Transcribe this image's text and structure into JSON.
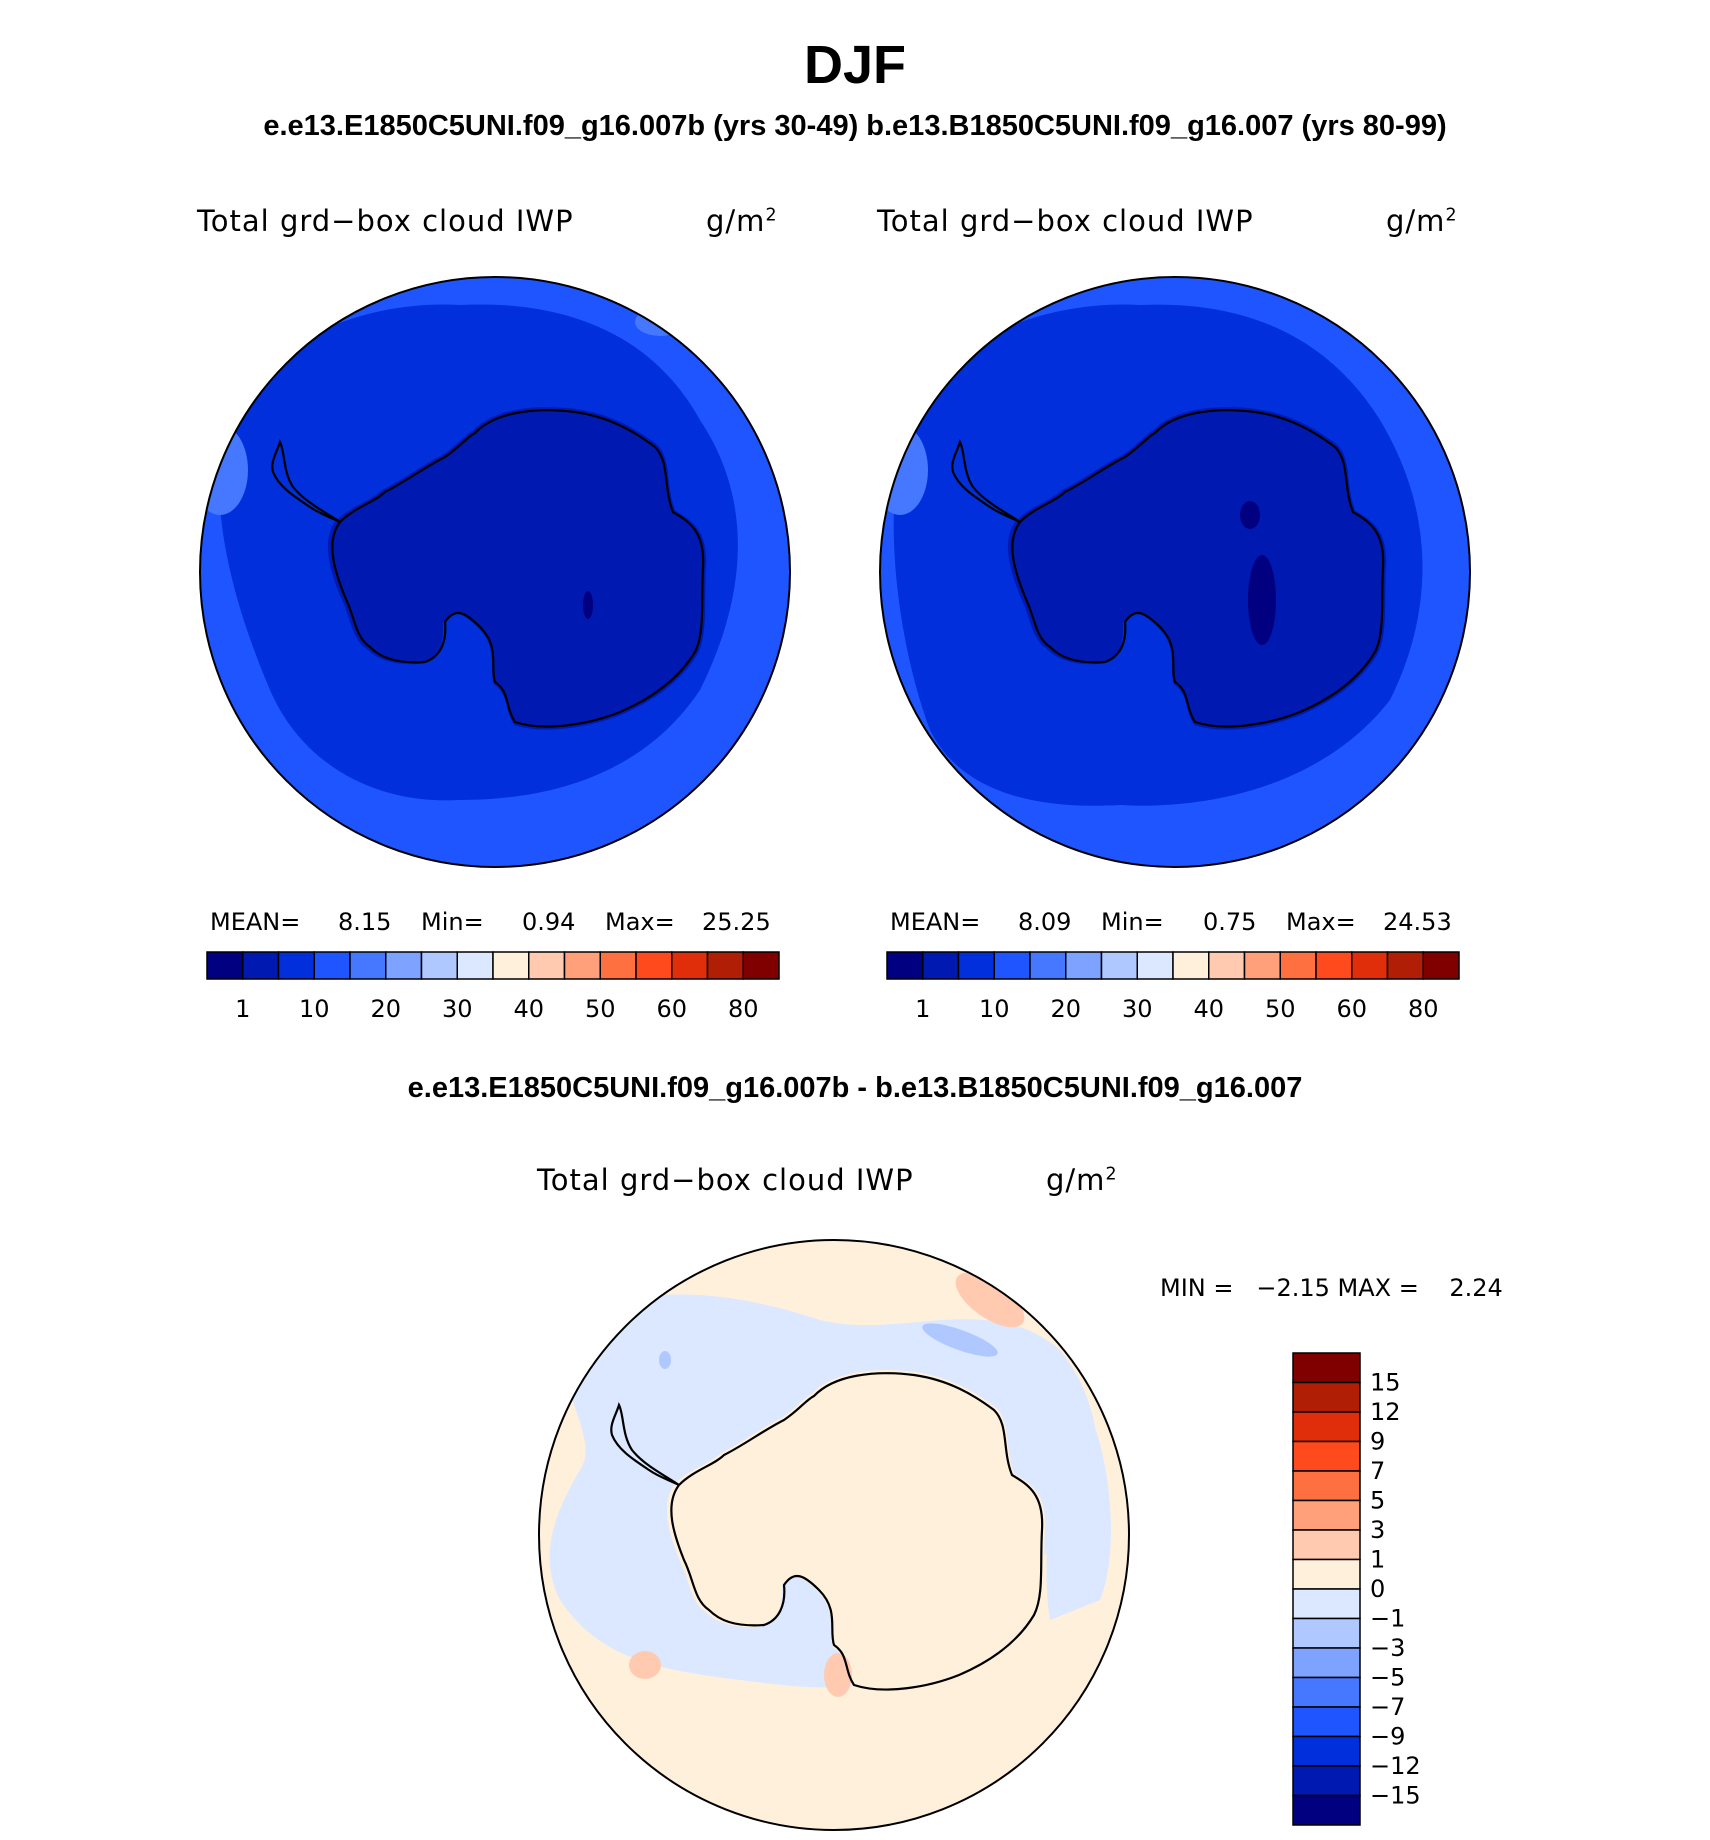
{
  "titles": {
    "main": "DJF",
    "subtitle": "e.e13.E1850C5UNI.f09_g16.007b (yrs 30-49)  b.e13.B1850C5UNI.f09_g16.007 (yrs 80-99)",
    "diff": "e.e13.E1850C5UNI.f09_g16.007b - b.e13.B1850C5UNI.f09_g16.007"
  },
  "panels": [
    {
      "label": "Total grd−box cloud IWP",
      "units": "g/m",
      "units_sup": "2",
      "mean_label": "MEAN=",
      "mean": "8.15",
      "min_label": "Min=",
      "min": "0.94",
      "max_label": "Max=",
      "max": "25.25"
    },
    {
      "label": "Total grd−box cloud IWP",
      "units": "g/m",
      "units_sup": "2",
      "mean_label": "MEAN=",
      "mean": "8.09",
      "min_label": "Min=",
      "min": "0.75",
      "max_label": "Max=",
      "max": "24.53"
    },
    {
      "label": "Total grd−box cloud IWP",
      "units": "g/m",
      "units_sup": "2",
      "minmax_text": "MIN =   −2.15 MAX =    2.24"
    }
  ],
  "colorbars": {
    "abs_colors": [
      "#000080",
      "#0019b0",
      "#002fdb",
      "#1f55ff",
      "#4577ff",
      "#7da2ff",
      "#afc8ff",
      "#dbe8ff",
      "#fff0dc",
      "#ffcaaf",
      "#ffa07a",
      "#ff7040",
      "#ff4a1e",
      "#e02e0a",
      "#b01e05",
      "#800000"
    ],
    "abs_ticks": [
      "1",
      "10",
      "20",
      "30",
      "40",
      "50",
      "60",
      "80"
    ],
    "diff_colors": [
      "#800000",
      "#b01e05",
      "#e02e0a",
      "#ff4a1e",
      "#ff7040",
      "#ffa07a",
      "#ffcaaf",
      "#fff0dc",
      "#dbe8ff",
      "#afc8ff",
      "#7da2ff",
      "#4577ff",
      "#1f55ff",
      "#002fdb",
      "#0019b0",
      "#000080"
    ],
    "diff_ticks": [
      "15",
      "12",
      "9",
      "7",
      "5",
      "3",
      "1",
      "0",
      "−1",
      "−3",
      "−5",
      "−7",
      "−9",
      "−12",
      "−15"
    ]
  },
  "map_colors": {
    "outer_blue": "#1f55ff",
    "mid_blue": "#002fdb",
    "inner_blue": "#0019b0",
    "deep_blue": "#000080",
    "light_blue": "#4577ff",
    "diff_light_blue": "#dbe8ff",
    "diff_peach": "#fff0dc",
    "diff_salmon": "#ffcaaf",
    "diff_blue": "#afc8ff"
  }
}
